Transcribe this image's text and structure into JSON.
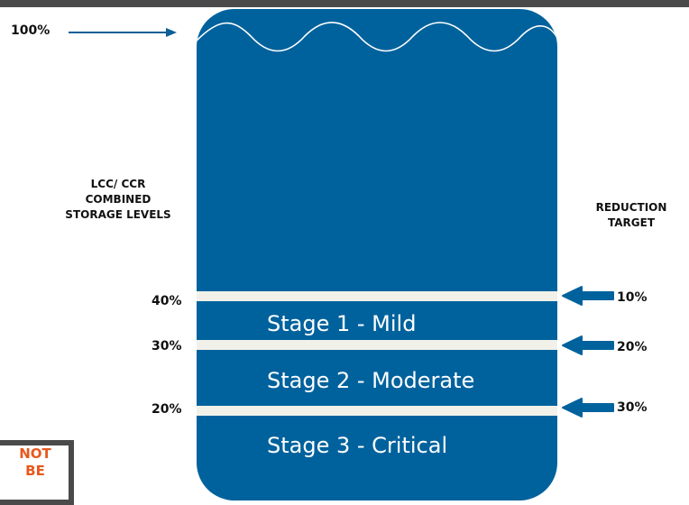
{
  "colors": {
    "water": "#00629d",
    "band": "#f1f1ea",
    "notice_text": "#e8581c"
  },
  "top_marker": {
    "label": "100%"
  },
  "left_heading": {
    "lines": [
      "LCC/ CCR",
      "COMBINED",
      "STORAGE LEVELS"
    ]
  },
  "right_heading": {
    "lines": [
      "REDUCTION",
      "TARGET"
    ]
  },
  "levels": [
    {
      "storage": "40%",
      "reduction": "10%",
      "stage": "Stage 1 - Mild"
    },
    {
      "storage": "30%",
      "reduction": "20%",
      "stage": "Stage 2 - Moderate"
    },
    {
      "storage": "20%",
      "reduction": "30%",
      "stage": "Stage 3 - Critical"
    }
  ],
  "notice": {
    "lines": [
      "NOT",
      "BE"
    ]
  },
  "icons": {
    "top_arrow": "arrow-right-icon",
    "level_arrows": "arrow-left-icon"
  }
}
